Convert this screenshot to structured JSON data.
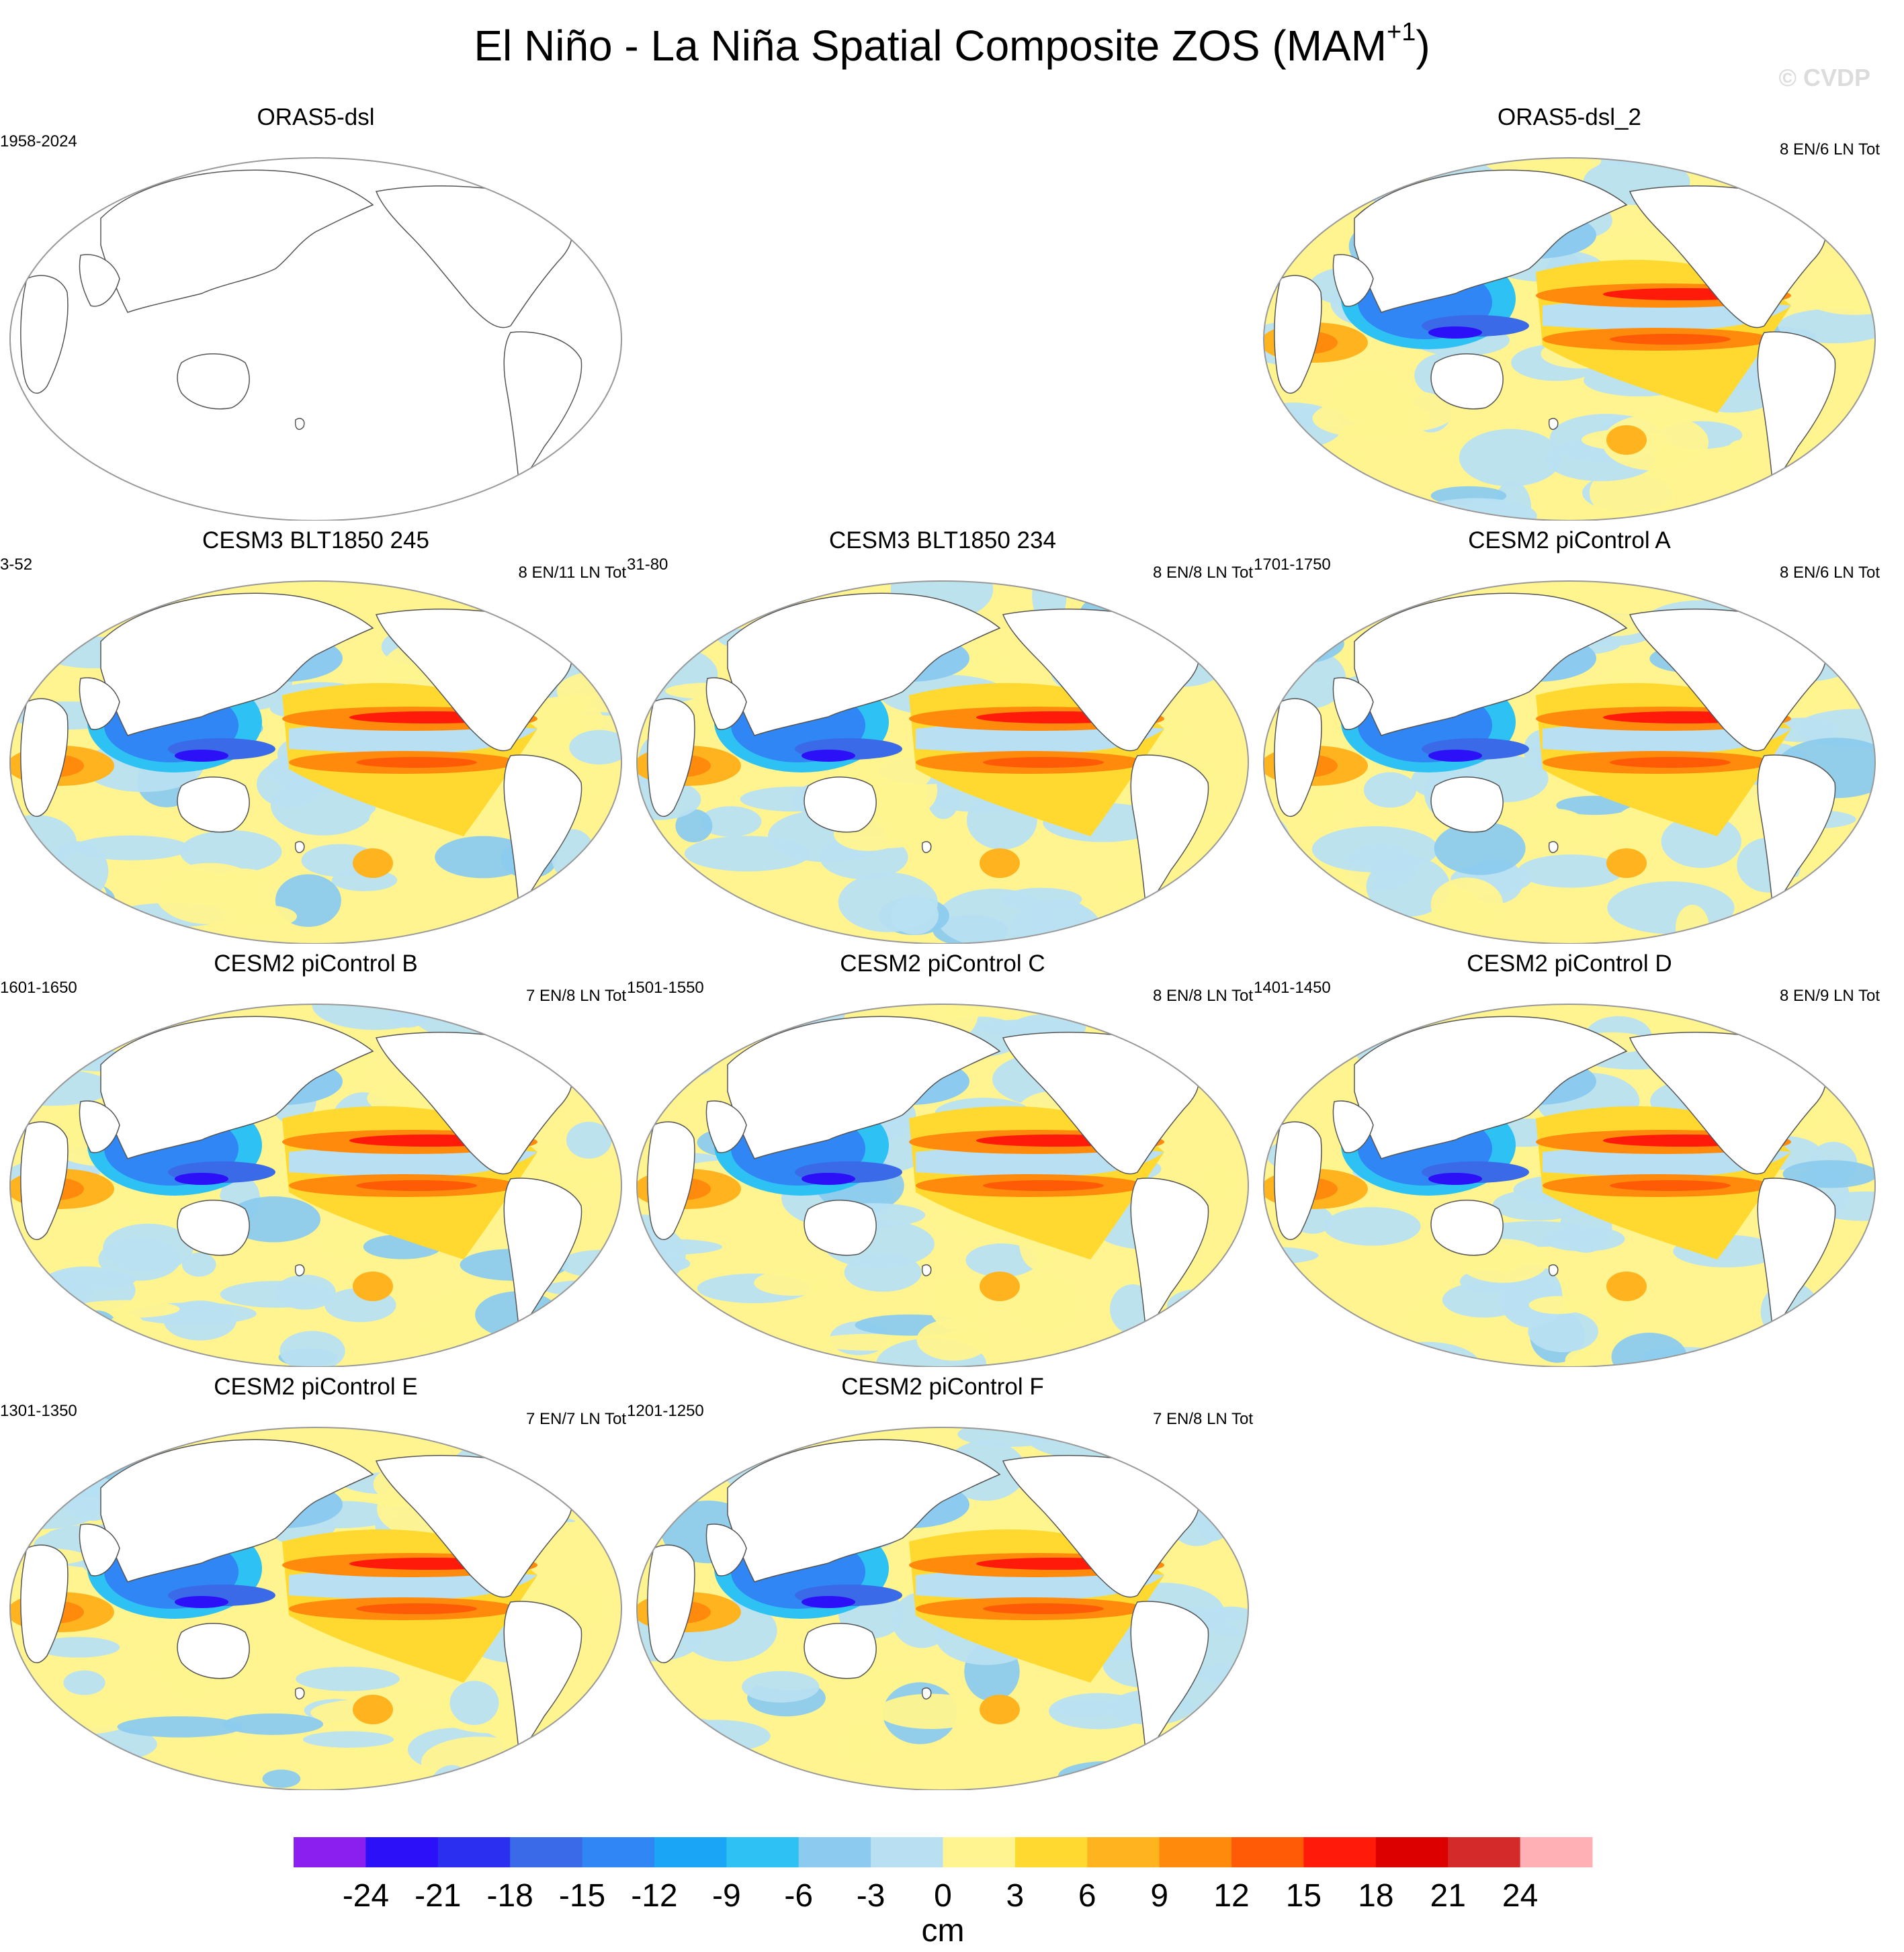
{
  "title": "El Niño - La Niña Spatial Composite ZOS (MAM",
  "title_superscript": "+1",
  "title_suffix": ")",
  "watermark": "© CVDP",
  "chart_data": {
    "type": "heatmap",
    "panels": [
      {
        "title": "ORAS5-dsl",
        "years": "1958-2024",
        "counts": "",
        "filled": false
      },
      {
        "title": "ORAS5-dsl_2",
        "years": "",
        "counts": "8 EN/6 LN Tot",
        "filled": true
      },
      {
        "title": "CESM3 BLT1850 245",
        "years": "3-52",
        "counts": "8 EN/11 LN Tot",
        "filled": true
      },
      {
        "title": "CESM3 BLT1850 234",
        "years": "31-80",
        "counts": "8 EN/8 LN Tot",
        "filled": true
      },
      {
        "title": "CESM2 piControl A",
        "years": "1701-1750",
        "counts": "8 EN/6 LN Tot",
        "filled": true
      },
      {
        "title": "CESM2 piControl B",
        "years": "1601-1650",
        "counts": "7 EN/8 LN Tot",
        "filled": true
      },
      {
        "title": "CESM2 piControl C",
        "years": "1501-1550",
        "counts": "8 EN/8 LN Tot",
        "filled": true
      },
      {
        "title": "CESM2 piControl D",
        "years": "1401-1450",
        "counts": "8 EN/9 LN Tot",
        "filled": true
      },
      {
        "title": "CESM2 piControl E",
        "years": "1301-1350",
        "counts": "7 EN/7 LN Tot",
        "filled": true
      },
      {
        "title": "CESM2 piControl F",
        "years": "1201-1250",
        "counts": "7 EN/8 LN Tot",
        "filled": true
      }
    ],
    "colorbar": {
      "unit_label": "cm",
      "tick_labels": [
        "-24",
        "-21",
        "-18",
        "-15",
        "-12",
        "-9",
        "-6",
        "-3",
        "0",
        "3",
        "6",
        "9",
        "12",
        "15",
        "18",
        "21",
        "24"
      ],
      "colors": [
        "#8a1ff0",
        "#2b10f8",
        "#2a2ff0",
        "#3a6ae8",
        "#2f86f4",
        "#1aa5f6",
        "#2ec2f4",
        "#8ccbef",
        "#b8e0f2",
        "#fff48f",
        "#ffd930",
        "#ffb41f",
        "#ff8a0c",
        "#ff5a06",
        "#ff1a0a",
        "#dc0000",
        "#d42a2a",
        "#ffb0b5"
      ]
    }
  }
}
